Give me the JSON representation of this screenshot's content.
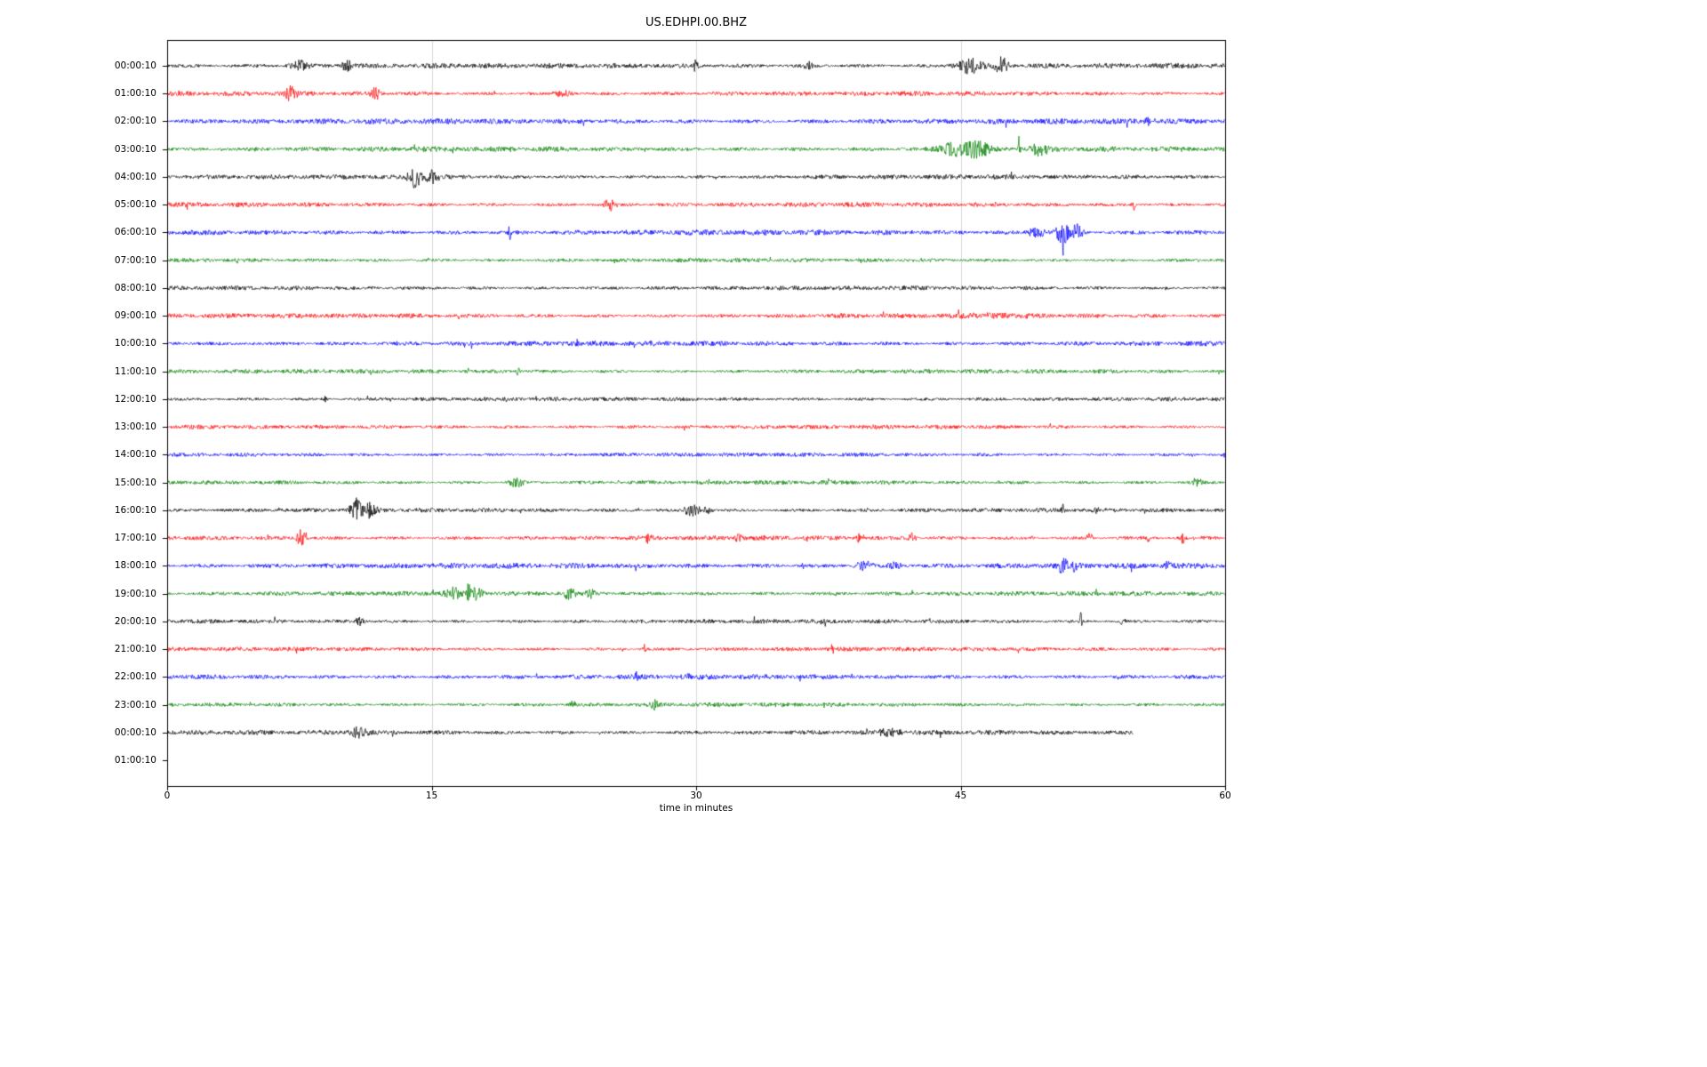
{
  "title": "US.EDHPI.00.BHZ",
  "chart_data": {
    "type": "line",
    "subtype": "seismogram_dayplot",
    "title": "US.EDHPI.00.BHZ",
    "xlabel": "time in minutes",
    "xlim": [
      0,
      60
    ],
    "x_ticks": [
      0,
      15,
      30,
      45,
      60
    ],
    "grid": {
      "vertical_lines_min": [
        15,
        30,
        45
      ],
      "color": "#d9d9d9"
    },
    "legend": "none",
    "color_cycle": [
      "#000000",
      "#ff0000",
      "#0000ff",
      "#008000"
    ],
    "rows": [
      {
        "label": "00:00:10",
        "color": "#000000",
        "duration_min": 60,
        "base_amp": 2.4,
        "events": [
          [
            7.5,
            5,
            0.8
          ],
          [
            10.2,
            6,
            0.5
          ],
          [
            30.0,
            12,
            0.15
          ],
          [
            36.3,
            5,
            0.4
          ],
          [
            45.5,
            8,
            1.2
          ],
          [
            47.3,
            9,
            0.6
          ]
        ]
      },
      {
        "label": "01:00:10",
        "color": "#ff0000",
        "duration_min": 60,
        "base_amp": 2.2,
        "events": [
          [
            7.0,
            8,
            0.5
          ],
          [
            11.8,
            7,
            0.4
          ],
          [
            22.5,
            3,
            0.8
          ]
        ]
      },
      {
        "label": "02:00:10",
        "color": "#0000ff",
        "duration_min": 60,
        "base_amp": 2.6,
        "events": [
          [
            55.6,
            5,
            0.2
          ]
        ]
      },
      {
        "label": "03:00:10",
        "color": "#008000",
        "duration_min": 60,
        "base_amp": 2.4,
        "events": [
          [
            44.8,
            8,
            1.5
          ],
          [
            46.0,
            8,
            1.0
          ],
          [
            48.3,
            13,
            0.12
          ],
          [
            49.5,
            6,
            0.8
          ]
        ]
      },
      {
        "label": "04:00:10",
        "color": "#000000",
        "duration_min": 60,
        "base_amp": 2.2,
        "events": [
          [
            13.8,
            5,
            0.5
          ],
          [
            14.1,
            14,
            0.3
          ],
          [
            14.9,
            7,
            0.8
          ]
        ]
      },
      {
        "label": "05:00:10",
        "color": "#ff0000",
        "duration_min": 60,
        "base_amp": 2.2,
        "events": [
          [
            25.1,
            6,
            0.5
          ],
          [
            54.8,
            7,
            0.15
          ]
        ]
      },
      {
        "label": "06:00:10",
        "color": "#0000ff",
        "duration_min": 60,
        "base_amp": 2.6,
        "events": [
          [
            19.4,
            7,
            0.2
          ],
          [
            49.3,
            6,
            0.8
          ],
          [
            50.8,
            13,
            0.6
          ],
          [
            51.6,
            8,
            0.5
          ]
        ]
      },
      {
        "label": "07:00:10",
        "color": "#008000",
        "duration_min": 60,
        "base_amp": 2.0,
        "events": []
      },
      {
        "label": "08:00:10",
        "color": "#000000",
        "duration_min": 60,
        "base_amp": 2.0,
        "events": []
      },
      {
        "label": "09:00:10",
        "color": "#ff0000",
        "duration_min": 60,
        "base_amp": 2.2,
        "events": [
          [
            47.0,
            1.5,
            3.0
          ]
        ]
      },
      {
        "label": "10:00:10",
        "color": "#0000ff",
        "duration_min": 60,
        "base_amp": 2.4,
        "events": []
      },
      {
        "label": "11:00:10",
        "color": "#008000",
        "duration_min": 60,
        "base_amp": 2.0,
        "events": [
          [
            19.9,
            5,
            0.15
          ]
        ]
      },
      {
        "label": "12:00:10",
        "color": "#000000",
        "duration_min": 60,
        "base_amp": 1.9,
        "events": [
          [
            9.0,
            3,
            0.2
          ]
        ]
      },
      {
        "label": "13:00:10",
        "color": "#ff0000",
        "duration_min": 60,
        "base_amp": 2.0,
        "events": []
      },
      {
        "label": "14:00:10",
        "color": "#0000ff",
        "duration_min": 60,
        "base_amp": 2.0,
        "events": []
      },
      {
        "label": "15:00:10",
        "color": "#008000",
        "duration_min": 60,
        "base_amp": 2.0,
        "events": [
          [
            19.8,
            5,
            0.6
          ],
          [
            58.4,
            5,
            0.4
          ]
        ]
      },
      {
        "label": "16:00:10",
        "color": "#000000",
        "duration_min": 60,
        "base_amp": 2.0,
        "events": [
          [
            10.7,
            13,
            0.5
          ],
          [
            11.5,
            8,
            0.6
          ],
          [
            29.8,
            6,
            0.8
          ],
          [
            30.7,
            5,
            0.4
          ],
          [
            50.8,
            6,
            0.15
          ],
          [
            52.7,
            6,
            0.15
          ]
        ]
      },
      {
        "label": "17:00:10",
        "color": "#ff0000",
        "duration_min": 60,
        "base_amp": 2.2,
        "events": [
          [
            7.6,
            9,
            0.4
          ],
          [
            27.3,
            4,
            0.3
          ],
          [
            32.4,
            4,
            0.3
          ],
          [
            36.2,
            4,
            0.2
          ],
          [
            39.2,
            4,
            0.2
          ],
          [
            42.2,
            5,
            0.3
          ],
          [
            52.3,
            5,
            0.3
          ],
          [
            55.6,
            4,
            0.2
          ],
          [
            57.6,
            5,
            0.2
          ]
        ]
      },
      {
        "label": "18:00:10",
        "color": "#0000ff",
        "duration_min": 60,
        "base_amp": 2.6,
        "events": [
          [
            39.5,
            5,
            0.7
          ],
          [
            41.3,
            4,
            0.5
          ],
          [
            50.8,
            8,
            0.4
          ],
          [
            51.5,
            6,
            0.3
          ],
          [
            56.8,
            5,
            0.3
          ]
        ]
      },
      {
        "label": "19:00:10",
        "color": "#008000",
        "duration_min": 60,
        "base_amp": 2.2,
        "events": [
          [
            16.2,
            6,
            0.6
          ],
          [
            17.1,
            12,
            0.15
          ],
          [
            17.6,
            7,
            0.5
          ],
          [
            22.8,
            5,
            0.6
          ],
          [
            24.0,
            4,
            0.4
          ]
        ]
      },
      {
        "label": "20:00:10",
        "color": "#000000",
        "duration_min": 60,
        "base_amp": 2.0,
        "events": [
          [
            10.9,
            5,
            0.4
          ],
          [
            51.8,
            10,
            0.12
          ],
          [
            54.2,
            4,
            0.2
          ]
        ]
      },
      {
        "label": "21:00:10",
        "color": "#ff0000",
        "duration_min": 60,
        "base_amp": 2.0,
        "events": [
          [
            27.1,
            6,
            0.15
          ],
          [
            37.7,
            5,
            0.2
          ]
        ]
      },
      {
        "label": "22:00:10",
        "color": "#0000ff",
        "duration_min": 60,
        "base_amp": 2.4,
        "events": [
          [
            26.6,
            5,
            0.2
          ],
          [
            29.6,
            5,
            0.15
          ]
        ]
      },
      {
        "label": "23:00:10",
        "color": "#008000",
        "duration_min": 60,
        "base_amp": 2.0,
        "events": [
          [
            23.0,
            3,
            0.3
          ],
          [
            27.6,
            7,
            0.3
          ]
        ]
      },
      {
        "label": "00:00:10",
        "color": "#000000",
        "duration_min": 54.8,
        "base_amp": 2.2,
        "events": [
          [
            10.9,
            5,
            0.8
          ],
          [
            41.0,
            3,
            1.0
          ]
        ]
      },
      {
        "label": "01:00:10",
        "color": "#ff0000",
        "duration_min": 0,
        "base_amp": 0,
        "events": []
      }
    ]
  }
}
